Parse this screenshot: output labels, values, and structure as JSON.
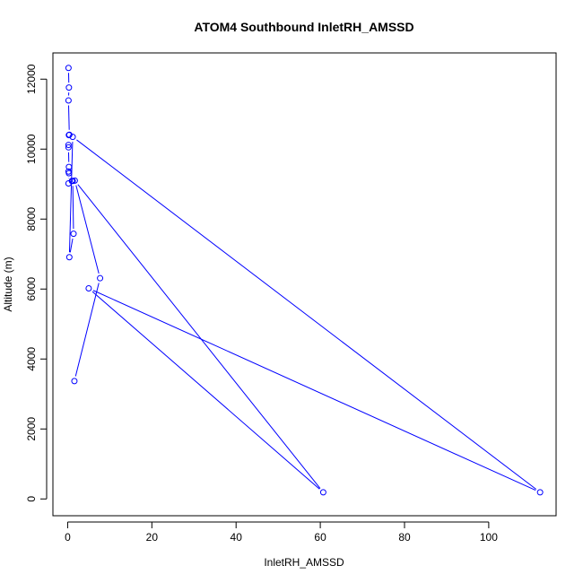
{
  "chart_data": {
    "type": "line",
    "title": "ATOM4 Southbound InletRH_AMSSD",
    "xlabel": "InletRH_AMSSD",
    "ylabel": "Altitude (m)",
    "xlim": [
      -3.5,
      116
    ],
    "ylim": [
      -480,
      12750
    ],
    "x_ticks": [
      0,
      20,
      40,
      60,
      80,
      100
    ],
    "y_ticks": [
      0,
      2000,
      4000,
      6000,
      8000,
      10000,
      12000
    ],
    "marker": "open-circle",
    "grid": false,
    "series": [
      {
        "color": "#0000ff",
        "points": [
          {
            "x": 0.2,
            "y": 12320
          },
          {
            "x": 0.3,
            "y": 11760
          },
          {
            "x": 0.2,
            "y": 11390
          },
          {
            "x": 0.4,
            "y": 10410
          },
          {
            "x": 0.3,
            "y": 10400
          },
          {
            "x": 0.2,
            "y": 10120
          },
          {
            "x": 0.2,
            "y": 10050
          },
          {
            "x": 0.3,
            "y": 9490
          },
          {
            "x": 0.2,
            "y": 9360
          },
          {
            "x": 0.3,
            "y": 9310
          },
          {
            "x": 0.2,
            "y": 9020
          },
          {
            "x": 1.0,
            "y": 9090
          },
          {
            "x": 1.2,
            "y": 9090
          },
          {
            "x": 1.4,
            "y": 7580
          },
          {
            "x": 0.4,
            "y": 6910
          },
          {
            "x": 1.2,
            "y": 10350
          },
          {
            "x": 112.2,
            "y": 190
          },
          {
            "x": 5.0,
            "y": 6020
          },
          {
            "x": 60.7,
            "y": 190
          },
          {
            "x": 1.7,
            "y": 9100
          },
          {
            "x": 7.7,
            "y": 6310
          },
          {
            "x": 1.6,
            "y": 3370
          }
        ]
      }
    ]
  }
}
